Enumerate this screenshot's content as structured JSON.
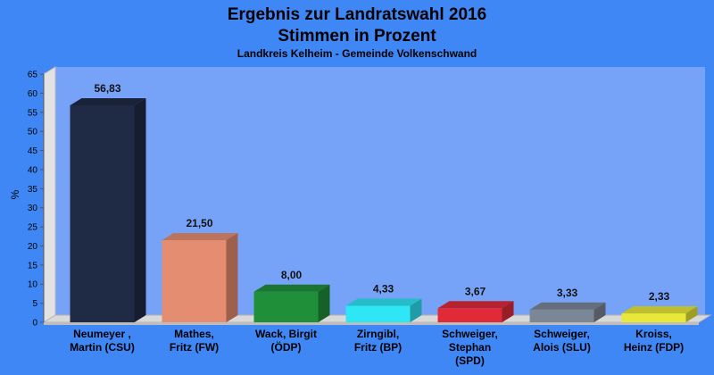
{
  "chart_data": {
    "type": "bar",
    "title_lines": [
      "Ergebnis zur Landratswahl 2016",
      "Stimmen in Prozent"
    ],
    "subtitle": "Landkreis Kelheim - Gemeinde Volkenschwand",
    "ylabel": "%",
    "xlabel": "",
    "ylim": [
      0,
      65
    ],
    "yticks": [
      0,
      5,
      10,
      15,
      20,
      25,
      30,
      35,
      40,
      45,
      50,
      55,
      60,
      65
    ],
    "grid": false,
    "categories": [
      [
        "Neumeyer ,",
        "Martin (CSU)"
      ],
      [
        "Mathes,",
        "Fritz (FW)"
      ],
      [
        "Wack, Birgit",
        "(ÖDP)"
      ],
      [
        "Zirngibl,",
        "Fritz (BP)"
      ],
      [
        "Schweiger,",
        "Stephan",
        "(SPD)"
      ],
      [
        "Schweiger,",
        "Alois (SLU)"
      ],
      [
        "Kroiss,",
        "Heinz (FDP)"
      ]
    ],
    "values": [
      56.83,
      21.5,
      8.0,
      4.33,
      3.67,
      3.33,
      2.33
    ],
    "value_labels": [
      "56,83",
      "21,50",
      "8,00",
      "4,33",
      "3,67",
      "3,33",
      "2,33"
    ],
    "colors": [
      "#1f2a44",
      "#e58d70",
      "#1f8f3a",
      "#2ee6f4",
      "#e02a38",
      "#7b8696",
      "#e8e83a"
    ]
  }
}
